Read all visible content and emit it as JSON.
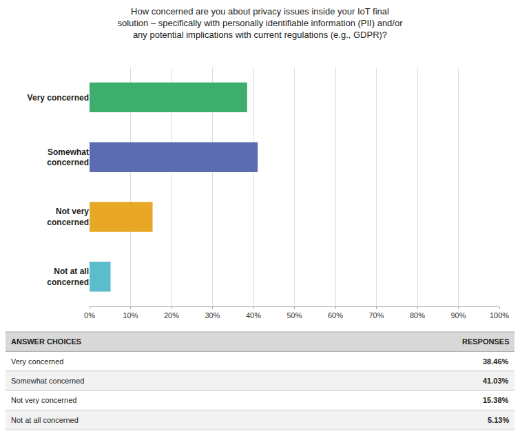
{
  "chart_data": {
    "type": "bar",
    "orientation": "horizontal",
    "title": "How concerned are you about privacy issues inside your IoT final\nsolution – specifically with personally identifiable information (PII) and/or\nany potential implications with current regulations (e.g., GDPR)?",
    "categories": [
      "Very concerned",
      "Somewhat\nconcerned",
      "Not very\nconcerned",
      "Not at all\nconcerned"
    ],
    "values": [
      38.46,
      41.03,
      15.38,
      5.13
    ],
    "colors": [
      "#3dae6e",
      "#5b6db0",
      "#e8a724",
      "#5bbccc"
    ],
    "xlim": [
      0,
      100
    ],
    "xticks": [
      {
        "value": 0,
        "label": "0%"
      },
      {
        "value": 10,
        "label": "10%"
      },
      {
        "value": 20,
        "label": "20%"
      },
      {
        "value": 30,
        "label": "30%"
      },
      {
        "value": 40,
        "label": "40%"
      },
      {
        "value": 50,
        "label": "50%"
      },
      {
        "value": 60,
        "label": "60%"
      },
      {
        "value": 70,
        "label": "70%"
      },
      {
        "value": 80,
        "label": "80%"
      },
      {
        "value": 90,
        "label": "90%"
      },
      {
        "value": 100,
        "label": "100%"
      }
    ],
    "grid": true,
    "annotations": [
      [
        "ANSWER CHOICES",
        "RESPONSES"
      ],
      [
        "Very concerned",
        "38.46%"
      ],
      [
        "Somewhat concerned",
        "41.03%"
      ],
      [
        "Not very concerned",
        "15.38%"
      ],
      [
        "Not at all concerned",
        "5.13%"
      ]
    ]
  }
}
